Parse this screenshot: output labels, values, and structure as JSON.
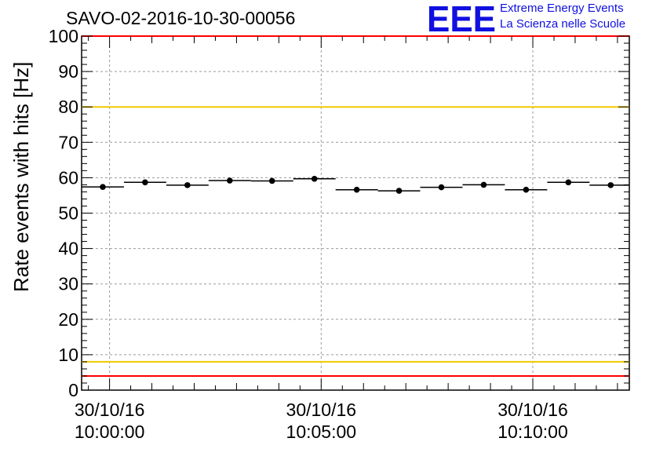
{
  "run_title": "SAVO-02-2016-10-30-00056",
  "logo": {
    "letters": "EEE",
    "line1": "Extreme Energy Events",
    "line2": "La Scienza nelle Scuole",
    "color": "#1010e0"
  },
  "chart_data": {
    "type": "scatter",
    "title": "SAVO-02-2016-10-30-00056",
    "xlabel": "",
    "ylabel": "Rate events with hits [Hz]",
    "ylim": [
      0,
      100
    ],
    "y_ticks": [
      0,
      10,
      20,
      30,
      40,
      50,
      60,
      70,
      80,
      90,
      100
    ],
    "x_unit": "minutes after 30/10/16 10:00:00",
    "xlim_minutes": [
      -0.66,
      12.28
    ],
    "x_ticks": [
      {
        "minute": 0,
        "date": "30/10/16",
        "time": "10:00:00"
      },
      {
        "minute": 5,
        "date": "30/10/16",
        "time": "10:05:00"
      },
      {
        "minute": 10,
        "date": "30/10/16",
        "time": "10:10:00"
      }
    ],
    "grid": true,
    "reference_lines": [
      {
        "value": 100,
        "color": "#ff0000"
      },
      {
        "value": 80,
        "color": "#f0c800"
      },
      {
        "value": 8,
        "color": "#f0c800"
      },
      {
        "value": 4,
        "color": "#ff0000"
      }
    ],
    "bin_width_minutes": 1,
    "series": [
      {
        "marker_color": "#000000",
        "x_minutes": [
          -0.16,
          0.84,
          1.84,
          2.84,
          3.84,
          4.84,
          5.84,
          6.84,
          7.84,
          8.84,
          9.84,
          10.84,
          11.84
        ],
        "values": [
          57.4,
          58.7,
          57.9,
          59.2,
          59.1,
          59.7,
          56.6,
          56.3,
          57.3,
          58.0,
          56.6,
          58.7,
          57.9
        ]
      }
    ]
  }
}
